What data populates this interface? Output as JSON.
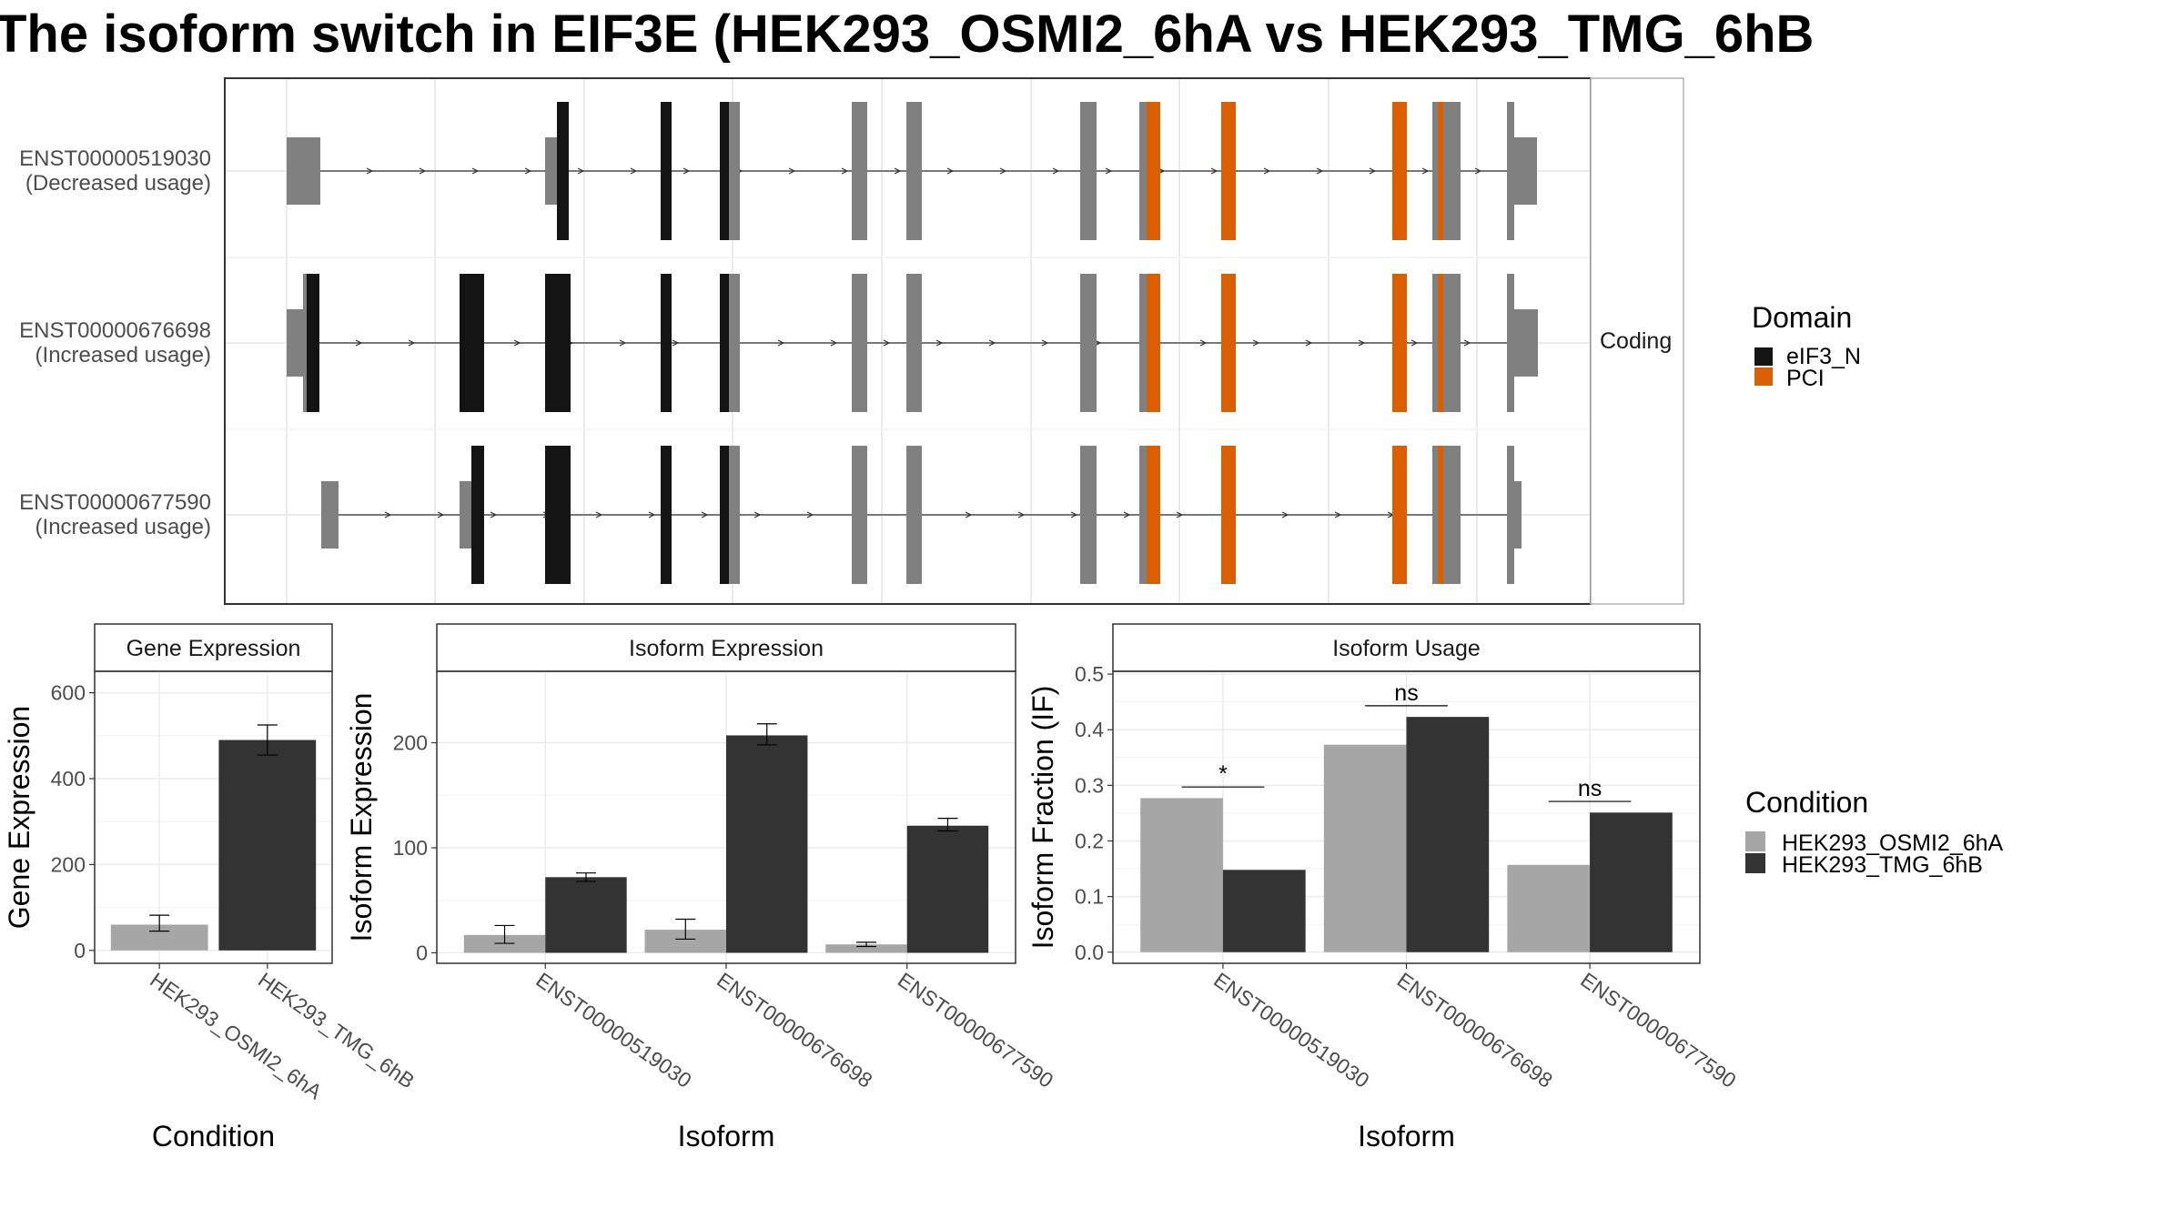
{
  "title": "The isoform switch in EIF3E (HEK293_OSMI2_6hA vs HEK293_TMG_6hB",
  "colors": {
    "domain_eIF3_N": "#141414",
    "domain_PCI": "#d95f02",
    "no_domain": "#808080",
    "condition_A": "#a6a6a6",
    "condition_B": "#333333",
    "grid": "#ebebeb",
    "panel_border": "#333333"
  },
  "chart_data": [
    {
      "type": "gene-structure",
      "facet_label": "Coding",
      "tracks": [
        {
          "label": "ENST00000519030",
          "sublabel": "(Decreased usage)"
        },
        {
          "label": "ENST00000676698",
          "sublabel": "(Increased usage)"
        },
        {
          "label": "ENST00000677590",
          "sublabel": "(Increased usage)"
        }
      ],
      "legend": {
        "title": "Domain",
        "items": [
          {
            "label": "eIF3_N",
            "color": "#141414"
          },
          {
            "label": "PCI",
            "color": "#d95f02"
          }
        ]
      }
    },
    {
      "type": "bar",
      "panel_title": "Gene Expression",
      "xlabel": "Condition",
      "ylabel": "Gene Expression",
      "ylim": [
        -30,
        650
      ],
      "yticks": [
        0,
        200,
        400,
        600
      ],
      "categories": [
        "HEK293_OSMI2_6hA",
        "HEK293_TMG_6hB"
      ],
      "values": [
        60,
        490
      ],
      "errors": [
        [
          45,
          82
        ],
        [
          455,
          525
        ]
      ],
      "colors": [
        "#a6a6a6",
        "#333333"
      ]
    },
    {
      "type": "bar",
      "panel_title": "Isoform Expression",
      "xlabel": "Isoform",
      "ylabel": "Isoform Expression",
      "ylim": [
        -10,
        268
      ],
      "yticks": [
        0,
        100,
        200
      ],
      "categories": [
        "ENST00000519030",
        "ENST00000676698",
        "ENST00000677590"
      ],
      "series": [
        {
          "name": "HEK293_OSMI2_6hA",
          "values": [
            17,
            22,
            8
          ],
          "errors": [
            [
              9,
              26
            ],
            [
              13,
              32
            ],
            [
              6,
              10
            ]
          ]
        },
        {
          "name": "HEK293_TMG_6hB",
          "values": [
            72,
            207,
            121
          ],
          "errors": [
            [
              68,
              76
            ],
            [
              198,
              218
            ],
            [
              116,
              128
            ]
          ]
        }
      ]
    },
    {
      "type": "bar",
      "panel_title": "Isoform Usage",
      "xlabel": "Isoform",
      "ylabel": "Isoform Fraction (IF)",
      "ylim": [
        -0.02,
        0.505
      ],
      "yticks": [
        "0.0",
        "0.1",
        "0.2",
        "0.3",
        "0.4",
        "0.5"
      ],
      "categories": [
        "ENST00000519030",
        "ENST00000676698",
        "ENST00000677590"
      ],
      "series": [
        {
          "name": "HEK293_OSMI2_6hA",
          "values": [
            0.277,
            0.373,
            0.157
          ]
        },
        {
          "name": "HEK293_TMG_6hB",
          "values": [
            0.148,
            0.423,
            0.251
          ]
        }
      ],
      "significance": [
        "*",
        "ns",
        "ns"
      ]
    }
  ],
  "condition_legend": {
    "title": "Condition",
    "items": [
      {
        "label": "HEK293_OSMI2_6hA",
        "color": "#a6a6a6"
      },
      {
        "label": "HEK293_TMG_6hB",
        "color": "#333333"
      }
    ]
  }
}
